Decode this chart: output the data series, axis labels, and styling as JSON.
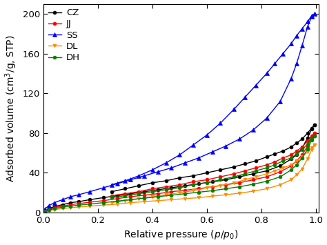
{
  "xlabel": "Relative pressure ($p/p_0$)",
  "ylabel": "Adsorbed volume (cm$^3$/g, STP)",
  "xlim": [
    0.0,
    1.01
  ],
  "ylim": [
    0,
    210
  ],
  "yticks": [
    0,
    40,
    80,
    120,
    160,
    200
  ],
  "xticks": [
    0.0,
    0.2,
    0.4,
    0.6,
    0.8,
    1.0
  ],
  "series": [
    {
      "label": "CZ",
      "color": "#000000",
      "marker": "o",
      "marker_size": 3.5,
      "adsorption_x": [
        0.005,
        0.02,
        0.04,
        0.07,
        0.1,
        0.13,
        0.17,
        0.22,
        0.27,
        0.32,
        0.37,
        0.42,
        0.47,
        0.52,
        0.57,
        0.62,
        0.67,
        0.72,
        0.77,
        0.82,
        0.87,
        0.91,
        0.93,
        0.95,
        0.97,
        0.985,
        0.995
      ],
      "adsorption_y": [
        1.5,
        4,
        6,
        8,
        10,
        11,
        13,
        15,
        17,
        19,
        21,
        23,
        25,
        27,
        29,
        31,
        33,
        36,
        39,
        42,
        47,
        54,
        58,
        65,
        75,
        84,
        88
      ],
      "desorption_x": [
        0.995,
        0.985,
        0.97,
        0.95,
        0.93,
        0.91,
        0.88,
        0.85,
        0.82,
        0.78,
        0.74,
        0.7,
        0.65,
        0.6,
        0.55,
        0.5,
        0.45,
        0.4,
        0.35,
        0.3,
        0.25
      ],
      "desorption_y": [
        88,
        85,
        80,
        74,
        70,
        66,
        62,
        59,
        56,
        52,
        49,
        46,
        43,
        40,
        37,
        35,
        32,
        30,
        27,
        24,
        21
      ]
    },
    {
      "label": "JJ",
      "color": "#ff0000",
      "marker": "o",
      "marker_size": 3.5,
      "adsorption_x": [
        0.005,
        0.02,
        0.04,
        0.07,
        0.1,
        0.13,
        0.17,
        0.22,
        0.27,
        0.32,
        0.37,
        0.42,
        0.47,
        0.52,
        0.57,
        0.62,
        0.67,
        0.72,
        0.77,
        0.82,
        0.87,
        0.91,
        0.93,
        0.95,
        0.97,
        0.985,
        0.995
      ],
      "adsorption_y": [
        1.0,
        3,
        5,
        6.5,
        8,
        9,
        10.5,
        12,
        14,
        16,
        17.5,
        19,
        21,
        22.5,
        24,
        26,
        28,
        30,
        33,
        36,
        41,
        47,
        52,
        58,
        67,
        76,
        80
      ],
      "desorption_x": [
        0.995,
        0.985,
        0.97,
        0.95,
        0.93,
        0.91,
        0.88,
        0.85,
        0.82,
        0.78,
        0.74,
        0.7,
        0.65,
        0.6,
        0.55,
        0.5,
        0.45,
        0.4,
        0.35,
        0.3,
        0.25
      ],
      "desorption_y": [
        80,
        77,
        72,
        66,
        62,
        58,
        55,
        51,
        48,
        45,
        42,
        39,
        36,
        33,
        31,
        28,
        26,
        24,
        21,
        19,
        17
      ]
    },
    {
      "label": "SS",
      "color": "#0000ff",
      "marker": "^",
      "marker_size": 4.5,
      "adsorption_x": [
        0.005,
        0.02,
        0.04,
        0.07,
        0.1,
        0.13,
        0.17,
        0.22,
        0.27,
        0.32,
        0.37,
        0.42,
        0.47,
        0.52,
        0.57,
        0.62,
        0.67,
        0.72,
        0.77,
        0.82,
        0.87,
        0.91,
        0.93,
        0.95,
        0.97,
        0.985,
        0.995
      ],
      "adsorption_y": [
        3.5,
        7,
        10,
        13,
        16,
        18,
        21,
        25,
        29,
        33,
        37,
        41,
        45,
        50,
        55,
        61,
        67,
        74,
        83,
        95,
        112,
        135,
        150,
        168,
        187,
        197,
        200
      ],
      "desorption_x": [
        0.995,
        0.985,
        0.97,
        0.95,
        0.93,
        0.91,
        0.88,
        0.85,
        0.82,
        0.78,
        0.74,
        0.7,
        0.65,
        0.6,
        0.55,
        0.5,
        0.45,
        0.4,
        0.35,
        0.3,
        0.25
      ],
      "desorption_y": [
        200,
        198,
        192,
        185,
        178,
        170,
        160,
        150,
        140,
        128,
        116,
        104,
        90,
        78,
        68,
        58,
        50,
        43,
        37,
        32,
        28
      ]
    },
    {
      "label": "DL",
      "color": "#ff8c00",
      "marker": "v",
      "marker_size": 3.5,
      "adsorption_x": [
        0.005,
        0.02,
        0.04,
        0.07,
        0.1,
        0.13,
        0.17,
        0.22,
        0.27,
        0.32,
        0.37,
        0.42,
        0.47,
        0.52,
        0.57,
        0.62,
        0.67,
        0.72,
        0.77,
        0.82,
        0.87,
        0.91,
        0.93,
        0.95,
        0.97,
        0.985,
        0.995
      ],
      "adsorption_y": [
        0.5,
        2,
        3,
        4,
        5,
        5.5,
        6.5,
        7.5,
        8.5,
        10,
        11,
        12,
        13,
        14,
        15,
        16.5,
        18,
        19.5,
        21.5,
        24,
        28,
        33,
        38,
        44,
        54,
        63,
        68
      ],
      "desorption_x": [
        0.995,
        0.985,
        0.97,
        0.95,
        0.93,
        0.91,
        0.88,
        0.85,
        0.82,
        0.78,
        0.74,
        0.7,
        0.65,
        0.6,
        0.55,
        0.5,
        0.45,
        0.4,
        0.35,
        0.3,
        0.25
      ],
      "desorption_y": [
        68,
        65,
        61,
        56,
        52,
        48,
        45,
        42,
        39,
        36,
        33,
        30,
        27,
        25,
        22,
        20,
        18,
        16,
        14,
        12,
        10
      ]
    },
    {
      "label": "DH",
      "color": "#008000",
      "marker": "o",
      "marker_size": 3.5,
      "adsorption_x": [
        0.005,
        0.02,
        0.04,
        0.07,
        0.1,
        0.13,
        0.17,
        0.22,
        0.27,
        0.32,
        0.37,
        0.42,
        0.47,
        0.52,
        0.57,
        0.62,
        0.67,
        0.72,
        0.77,
        0.82,
        0.87,
        0.91,
        0.93,
        0.95,
        0.97,
        0.985,
        0.995
      ],
      "adsorption_y": [
        0.5,
        2.5,
        4,
        5.5,
        6.5,
        7.5,
        8.5,
        10,
        11.5,
        13,
        14.5,
        16,
        17.5,
        19,
        20.5,
        22,
        24,
        26,
        28.5,
        31.5,
        36,
        43,
        48,
        55,
        64,
        73,
        77
      ],
      "desorption_x": [
        0.995,
        0.985,
        0.97,
        0.95,
        0.93,
        0.91,
        0.88,
        0.85,
        0.82,
        0.78,
        0.74,
        0.7,
        0.65,
        0.6,
        0.55,
        0.5,
        0.45,
        0.4,
        0.35,
        0.3,
        0.25
      ],
      "desorption_y": [
        77,
        74,
        69,
        63,
        59,
        55,
        52,
        48,
        45,
        42,
        39,
        36,
        33,
        30,
        28,
        25,
        23,
        21,
        19,
        17,
        15
      ]
    }
  ],
  "legend_loc": "upper left",
  "font_size": 10,
  "tick_font_size": 9.5,
  "line_width": 1.0,
  "fig_bg": "#ffffff"
}
